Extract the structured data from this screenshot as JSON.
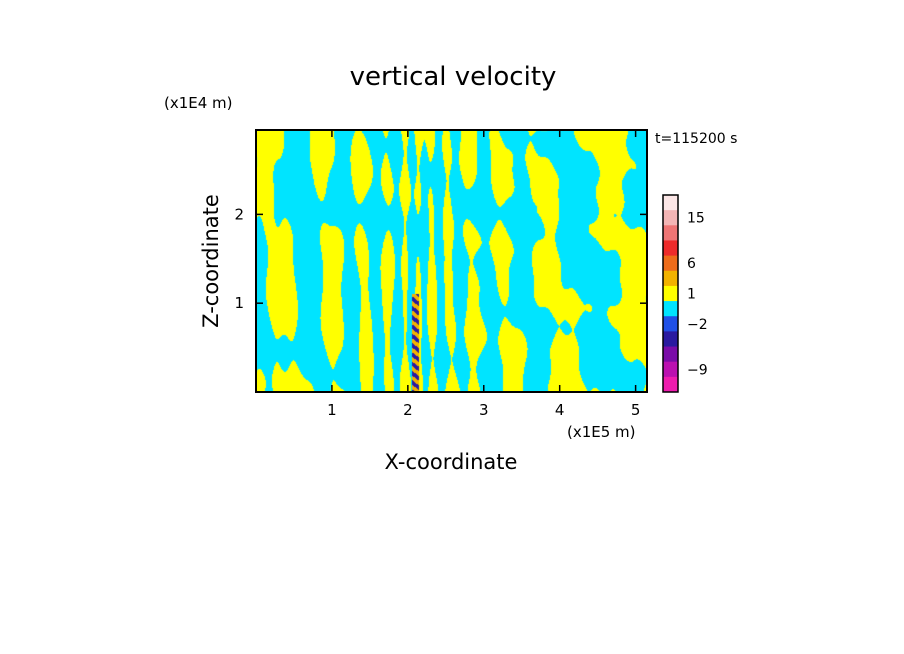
{
  "chart_data": {
    "type": "heatmap",
    "title": "vertical velocity",
    "xlabel": "X-coordinate",
    "ylabel": "Z-coordinate",
    "x_scale_label": "(x1E5 m)",
    "y_scale_label": "(x1E4 m)",
    "time_label": "t=115200 s",
    "xlim": [
      0,
      5.15
    ],
    "ylim": [
      0,
      2.95
    ],
    "x_ticks": [
      1,
      2,
      3,
      4,
      5
    ],
    "y_ticks": [
      1,
      2
    ],
    "colorbar": {
      "labels": [
        "15",
        "6",
        "1",
        "−2",
        "−9"
      ],
      "bands": [
        {
          "color": "#fbe6e6",
          "label": ""
        },
        {
          "color": "#f4b5b5",
          "label": "15"
        },
        {
          "color": "#ef7575",
          "label": ""
        },
        {
          "color": "#ee2b2b",
          "label": ""
        },
        {
          "color": "#ee6c1b",
          "label": "6"
        },
        {
          "color": "#f2b200",
          "label": ""
        },
        {
          "color": "#ffff00",
          "label": "1"
        },
        {
          "color": "#00e4ff",
          "label": ""
        },
        {
          "color": "#2050e6",
          "label": "−2"
        },
        {
          "color": "#2a1aa0",
          "label": ""
        },
        {
          "color": "#7a0ca8",
          "label": ""
        },
        {
          "color": "#bb10b0",
          "label": "−9"
        },
        {
          "color": "#ee1cae",
          "label": ""
        }
      ]
    },
    "field": {
      "colors": {
        "positive": "#ffff00",
        "negative": "#00e4ff",
        "strong_up": "#f2b200",
        "strong_down": "#2a1aa0"
      },
      "center_x": 2.1,
      "source": "wave pattern over mountain-like forcing centered near x=2.1"
    }
  }
}
